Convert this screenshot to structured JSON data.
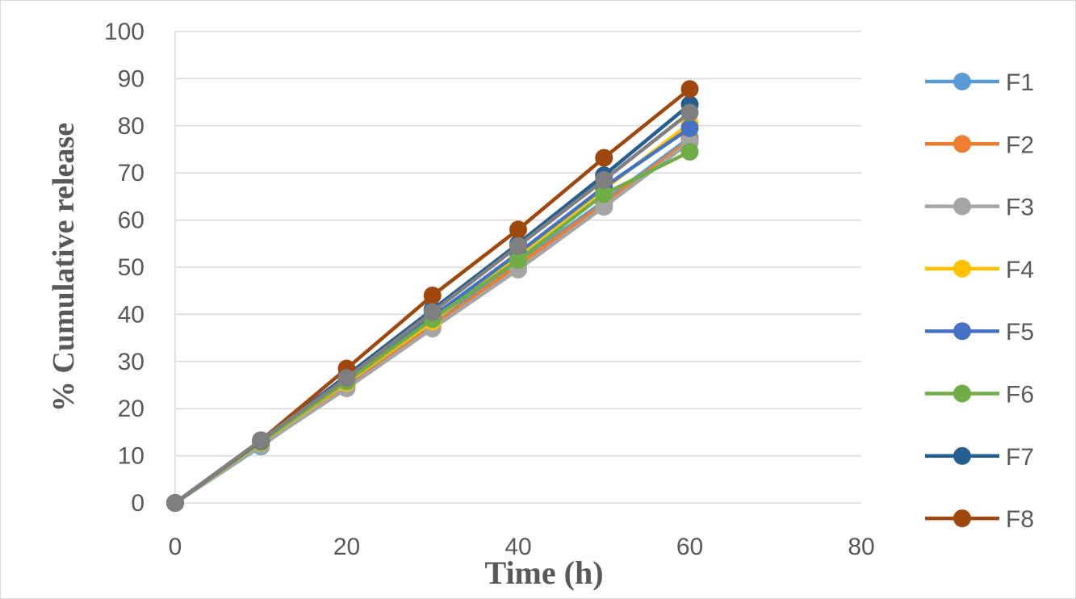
{
  "chart_data": {
    "type": "line",
    "title": "",
    "xlabel": "Time (h)",
    "ylabel": "% Cumulative  release",
    "xlim": [
      0,
      80
    ],
    "ylim": [
      0,
      100
    ],
    "xticks": [
      0,
      20,
      40,
      60,
      80
    ],
    "yticks": [
      0,
      10,
      20,
      30,
      40,
      50,
      60,
      70,
      80,
      90,
      100
    ],
    "grid": "horizontal",
    "legend_position": "right",
    "x": [
      0,
      10,
      20,
      30,
      40,
      50,
      60
    ],
    "series": [
      {
        "name": "F1",
        "color": "#5B9BD5",
        "values": [
          0,
          12.0,
          25.0,
          38.0,
          51.0,
          64.0,
          77.5
        ]
      },
      {
        "name": "F2",
        "color": "#ED7D31",
        "values": [
          0,
          12.5,
          24.5,
          37.5,
          50.5,
          63.5,
          77.0
        ]
      },
      {
        "name": "F3",
        "color": "#A5A5A5",
        "values": [
          0,
          12.2,
          24.3,
          37.0,
          49.5,
          62.8,
          76.5
        ]
      },
      {
        "name": "F4",
        "color": "#FFC000",
        "values": [
          0,
          12.8,
          25.5,
          38.5,
          52.5,
          66.5,
          80.5
        ]
      },
      {
        "name": "F5",
        "color": "#4472C4",
        "values": [
          0,
          13.0,
          26.0,
          39.5,
          53.0,
          67.0,
          79.5
        ]
      },
      {
        "name": "F6",
        "color": "#70AD47",
        "values": [
          0,
          12.9,
          25.8,
          39.0,
          51.5,
          65.5,
          74.5
        ]
      },
      {
        "name": "F7",
        "color": "#255E91",
        "values": [
          0,
          13.2,
          27.0,
          41.0,
          55.0,
          69.5,
          84.5
        ]
      },
      {
        "name": "F8",
        "color": "#9E480E",
        "values": [
          0,
          13.3,
          28.5,
          44.0,
          58.0,
          73.2,
          87.8
        ]
      }
    ],
    "overlay": {
      "name": "F3",
      "color": "#7F7F7F",
      "values": [
        0,
        13.3,
        26.5,
        40.5,
        54.5,
        68.5,
        82.8
      ]
    }
  }
}
